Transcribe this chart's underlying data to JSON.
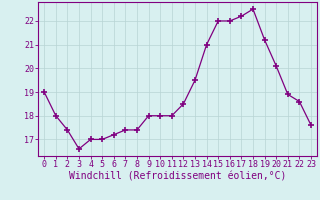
{
  "x": [
    0,
    1,
    2,
    3,
    4,
    5,
    6,
    7,
    8,
    9,
    10,
    11,
    12,
    13,
    14,
    15,
    16,
    17,
    18,
    19,
    20,
    21,
    22,
    23
  ],
  "y": [
    19.0,
    18.0,
    17.4,
    16.6,
    17.0,
    17.0,
    17.2,
    17.4,
    17.4,
    18.0,
    18.0,
    18.0,
    18.5,
    19.5,
    21.0,
    22.0,
    22.0,
    22.2,
    22.5,
    21.2,
    20.1,
    18.9,
    18.6,
    17.6
  ],
  "line_color": "#800080",
  "marker": "+",
  "marker_size": 4,
  "bg_color": "#d8f0f0",
  "grid_color": "#b8d4d4",
  "xlabel": "Windchill (Refroidissement éolien,°C)",
  "xlabel_fontsize": 7,
  "ylim": [
    16.3,
    22.8
  ],
  "xlim": [
    -0.5,
    23.5
  ],
  "yticks": [
    17,
    18,
    19,
    20,
    21,
    22
  ],
  "xticks": [
    0,
    1,
    2,
    3,
    4,
    5,
    6,
    7,
    8,
    9,
    10,
    11,
    12,
    13,
    14,
    15,
    16,
    17,
    18,
    19,
    20,
    21,
    22,
    23
  ],
  "tick_fontsize": 6,
  "tick_color": "#800080",
  "spine_color": "#800080"
}
